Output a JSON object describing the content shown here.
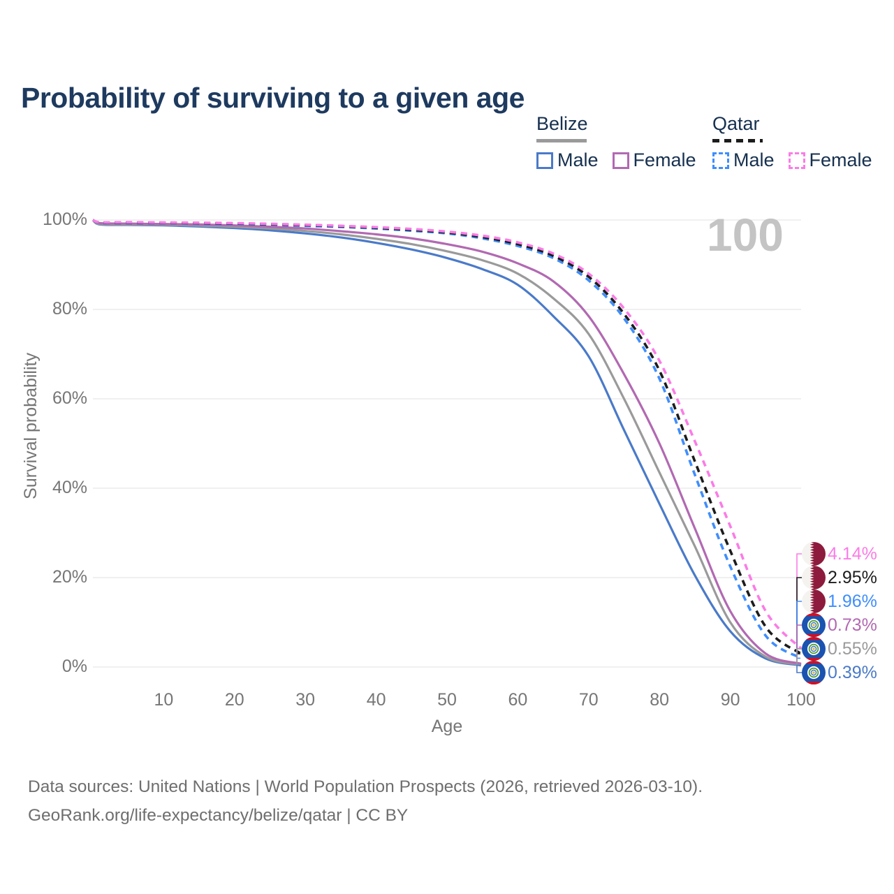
{
  "title": "Probability of surviving to a given age",
  "watermark": "100",
  "colors": {
    "title": "#1e3a5f",
    "legend_text": "#16304f",
    "axis_text": "#767676",
    "grid": "#e8e8e8",
    "watermark": "#c4c4c4",
    "footer": "#6e6e6e",
    "belize_male": "#4a7ac9",
    "belize_both": "#9a9a9a",
    "belize_female": "#b269b2",
    "qatar_male": "#3f8efc",
    "qatar_both": "#1c1c1c",
    "qatar_female": "#fb7ce6",
    "qatar_flag_maroon": "#8d1b3d",
    "qatar_flag_white": "#f5f3f0",
    "belize_flag_blue": "#1a53b0",
    "belize_flag_red": "#cf1126",
    "belize_flag_green": "#4e9a2e",
    "belize_flag_yellow": "#e3b93c"
  },
  "legend": {
    "belize": {
      "label": "Belize",
      "male_label": "Male",
      "female_label": "Female"
    },
    "qatar": {
      "label": "Qatar",
      "male_label": "Male",
      "female_label": "Female"
    }
  },
  "chart_data": {
    "type": "line",
    "title": "Probability of surviving to a given age",
    "xlabel": "Age",
    "ylabel": "Survival probability",
    "xlim": [
      0,
      100
    ],
    "ylim": [
      0,
      100
    ],
    "grid": "horizontal",
    "legend_position": "top-right",
    "x_ticks": [
      10,
      20,
      30,
      40,
      50,
      60,
      70,
      80,
      90,
      100
    ],
    "x_tick_labels": [
      "10",
      "20",
      "30",
      "40",
      "50",
      "60",
      "70",
      "80",
      "90",
      "100"
    ],
    "y_ticks": [
      0,
      20,
      40,
      60,
      80,
      100
    ],
    "y_tick_labels": [
      "0%",
      "20%",
      "40%",
      "60%",
      "80%",
      "100%"
    ],
    "x": [
      0,
      1,
      5,
      10,
      15,
      20,
      25,
      30,
      35,
      40,
      45,
      50,
      55,
      60,
      65,
      70,
      75,
      80,
      85,
      90,
      95,
      100
    ],
    "series": [
      {
        "name": "Belize Male",
        "country": "Belize",
        "sex": "male",
        "style": "solid",
        "color_key": "belize_male",
        "values": [
          100,
          99.0,
          98.9,
          98.8,
          98.55,
          98.2,
          97.7,
          97.0,
          96.1,
          94.9,
          93.4,
          91.5,
          89.0,
          85.5,
          78.5,
          69.5,
          53.0,
          36.5,
          20.5,
          8.0,
          1.9,
          0.39
        ]
      },
      {
        "name": "Belize",
        "country": "Belize",
        "sex": "both",
        "style": "solid",
        "color_key": "belize_both",
        "values": [
          100,
          99.1,
          99.0,
          98.95,
          98.75,
          98.5,
          98.1,
          97.55,
          96.8,
          95.8,
          94.6,
          93.0,
          91.0,
          88.0,
          82.5,
          74.5,
          60.0,
          43.5,
          27.0,
          10.0,
          2.3,
          0.55
        ]
      },
      {
        "name": "Belize Female",
        "country": "Belize",
        "sex": "female",
        "style": "solid",
        "color_key": "belize_female",
        "values": [
          100,
          99.3,
          99.2,
          99.1,
          99.0,
          98.8,
          98.5,
          98.1,
          97.5,
          96.8,
          95.9,
          94.6,
          92.9,
          90.3,
          86.3,
          78.5,
          65.5,
          50.0,
          31.0,
          12.5,
          3.0,
          0.73
        ]
      },
      {
        "name": "Qatar Male",
        "country": "Qatar",
        "sex": "male",
        "style": "dashed",
        "color_key": "qatar_male",
        "values": [
          100,
          99.4,
          99.35,
          99.3,
          99.2,
          99.1,
          98.95,
          98.7,
          98.45,
          98.1,
          97.6,
          97.0,
          95.9,
          94.2,
          91.5,
          86.5,
          78.0,
          64.5,
          43.0,
          22.5,
          7.0,
          1.96
        ]
      },
      {
        "name": "Qatar",
        "country": "Qatar",
        "sex": "both",
        "style": "dashed",
        "color_key": "qatar_both",
        "values": [
          100,
          99.45,
          99.42,
          99.38,
          99.3,
          99.2,
          99.05,
          98.85,
          98.6,
          98.25,
          97.8,
          97.2,
          96.2,
          94.6,
          92.0,
          87.3,
          79.0,
          66.3,
          46.0,
          26.0,
          9.0,
          2.95
        ]
      },
      {
        "name": "Qatar Female",
        "country": "Qatar",
        "sex": "female",
        "style": "dashed",
        "color_key": "qatar_female",
        "values": [
          100,
          99.5,
          99.5,
          99.45,
          99.4,
          99.3,
          99.15,
          98.95,
          98.7,
          98.4,
          98.0,
          97.4,
          96.5,
          95.0,
          92.5,
          88.0,
          80.2,
          68.5,
          50.5,
          31.5,
          12.5,
          4.14
        ]
      }
    ],
    "end_labels": [
      {
        "series": "Qatar Female",
        "text": "4.14%",
        "value": 4.14,
        "flag": "qatar",
        "color_key": "qatar_female"
      },
      {
        "series": "Qatar",
        "text": "2.95%",
        "value": 2.95,
        "flag": "qatar",
        "color_key": "qatar_both"
      },
      {
        "series": "Qatar Male",
        "text": "1.96%",
        "value": 1.96,
        "flag": "qatar",
        "color_key": "qatar_male"
      },
      {
        "series": "Belize Female",
        "text": "0.73%",
        "value": 0.73,
        "flag": "belize",
        "color_key": "belize_female"
      },
      {
        "series": "Belize",
        "text": "0.55%",
        "value": 0.55,
        "flag": "belize",
        "color_key": "belize_both"
      },
      {
        "series": "Belize Male",
        "text": "0.39%",
        "value": 0.39,
        "flag": "belize",
        "color_key": "belize_male"
      }
    ]
  },
  "footer": {
    "line1": "Data sources: United Nations | World Population Prospects (2026, retrieved 2026-03-10).",
    "line2": "GeoRank.org/life-expectancy/belize/qatar | CC BY"
  }
}
